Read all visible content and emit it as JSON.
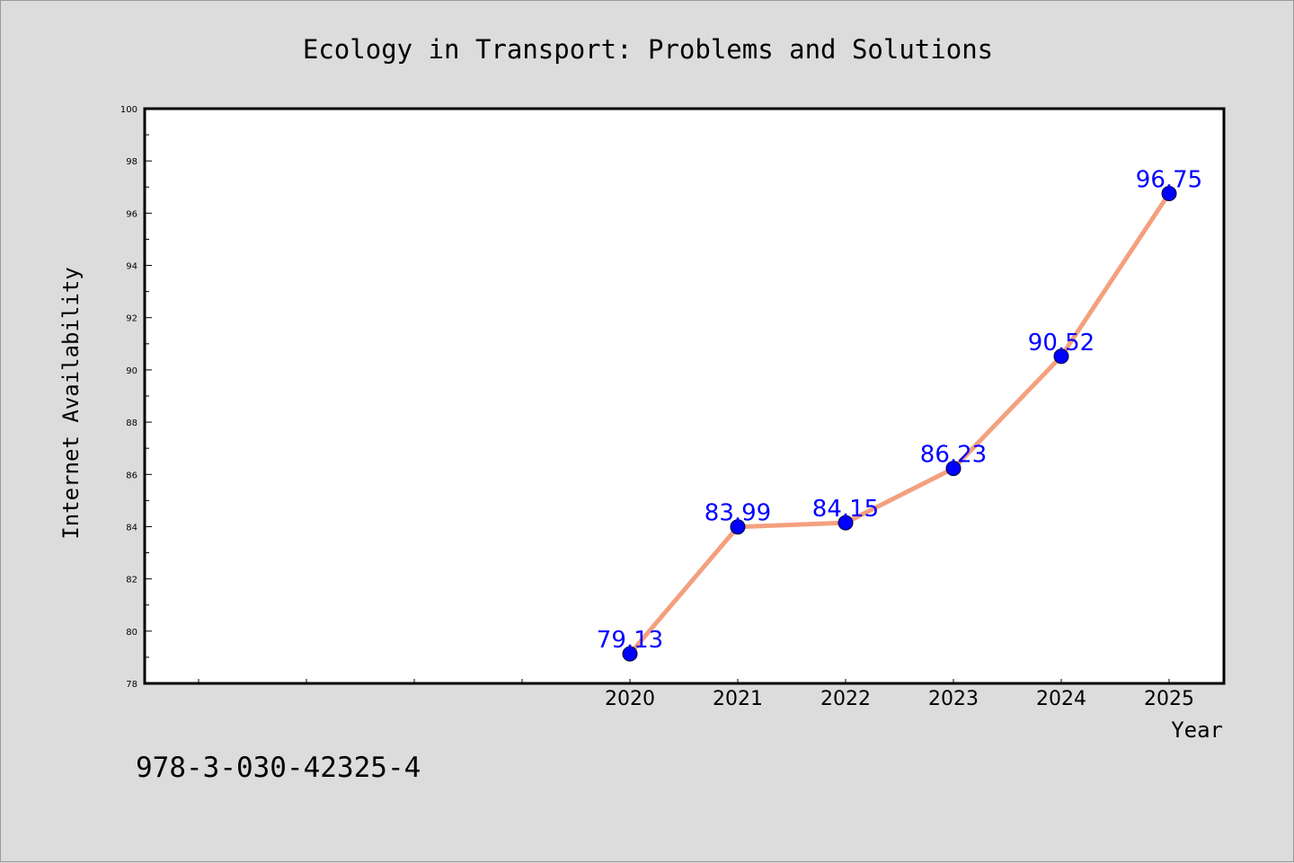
{
  "chart_data": {
    "type": "line",
    "title": "Ecology in Transport: Problems and Solutions",
    "xlabel": "Year",
    "ylabel": "Internet Availability",
    "x": [
      "2020",
      "2021",
      "2022",
      "2023",
      "2024",
      "2025"
    ],
    "values": [
      79.13,
      83.99,
      84.15,
      86.23,
      90.52,
      96.75
    ],
    "data_labels": [
      "79.13",
      "83.99",
      "84.15",
      "86.23",
      "90.52",
      "96.75"
    ],
    "ylim": [
      78,
      100
    ],
    "yticks": [
      "78",
      "80",
      "82",
      "84",
      "86",
      "88",
      "90",
      "92",
      "94",
      "96",
      "98",
      "100"
    ],
    "grid": false,
    "line_color": "#f4a07e",
    "marker_color": "#0000ff",
    "label_color": "#0000ff"
  },
  "footer": {
    "isbn": "978-3-030-42325-4"
  }
}
